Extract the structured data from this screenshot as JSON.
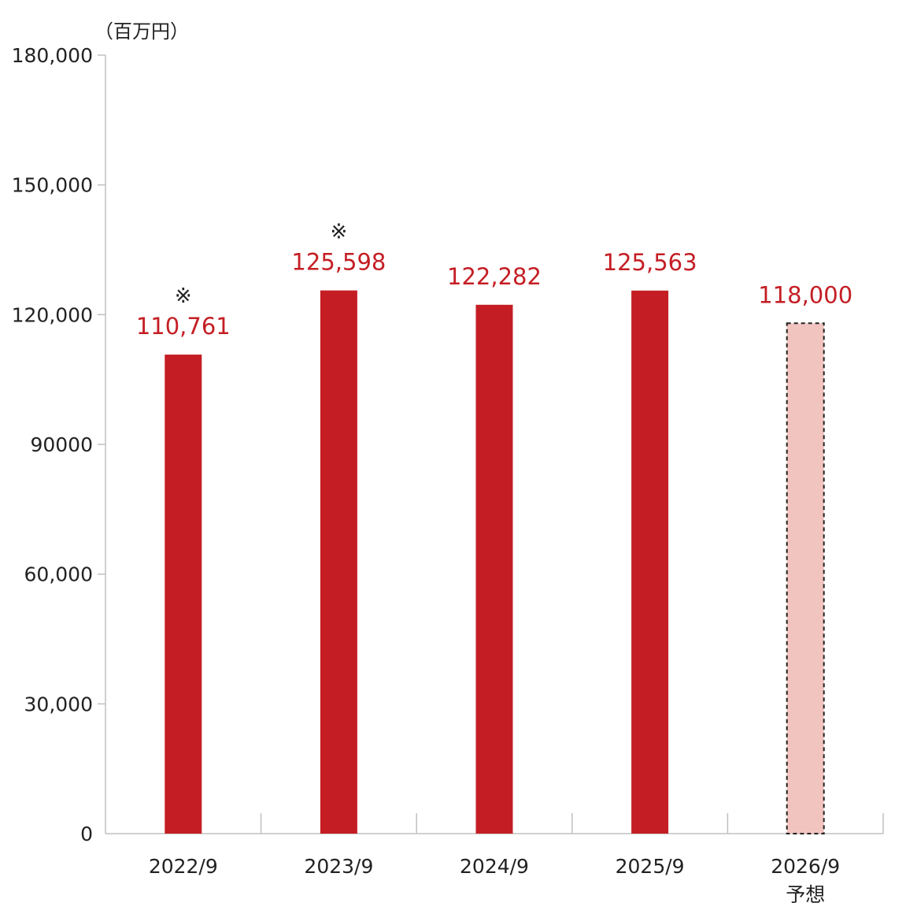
{
  "chart_data": {
    "type": "bar",
    "unit_label": "（百万円）",
    "categories": [
      "2022/9",
      "2023/9",
      "2024/9",
      "2025/9",
      "2026/9"
    ],
    "category_sublabels": [
      "",
      "",
      "",
      "",
      "予想"
    ],
    "values": [
      110761,
      125598,
      122282,
      125563,
      118000
    ],
    "value_labels": [
      "110,761",
      "125,598",
      "122,282",
      "125,563",
      "118,000"
    ],
    "notes": [
      "※",
      "※",
      "",
      "",
      ""
    ],
    "forecast": [
      false,
      false,
      false,
      false,
      true
    ],
    "ylim": [
      0,
      180000
    ],
    "yticks": [
      0,
      30000,
      60000,
      90000,
      120000,
      150000,
      180000
    ],
    "ytick_labels": [
      "0",
      "30,000",
      "60,000",
      "90000",
      "120,000",
      "150,000",
      "180,000"
    ],
    "grid": false,
    "colors": {
      "bar": "#c41e24",
      "forecast_fill": "#f2c4c0",
      "forecast_border": "#222222",
      "value_label": "#c41e24",
      "axis": "#c0c0c0"
    }
  }
}
